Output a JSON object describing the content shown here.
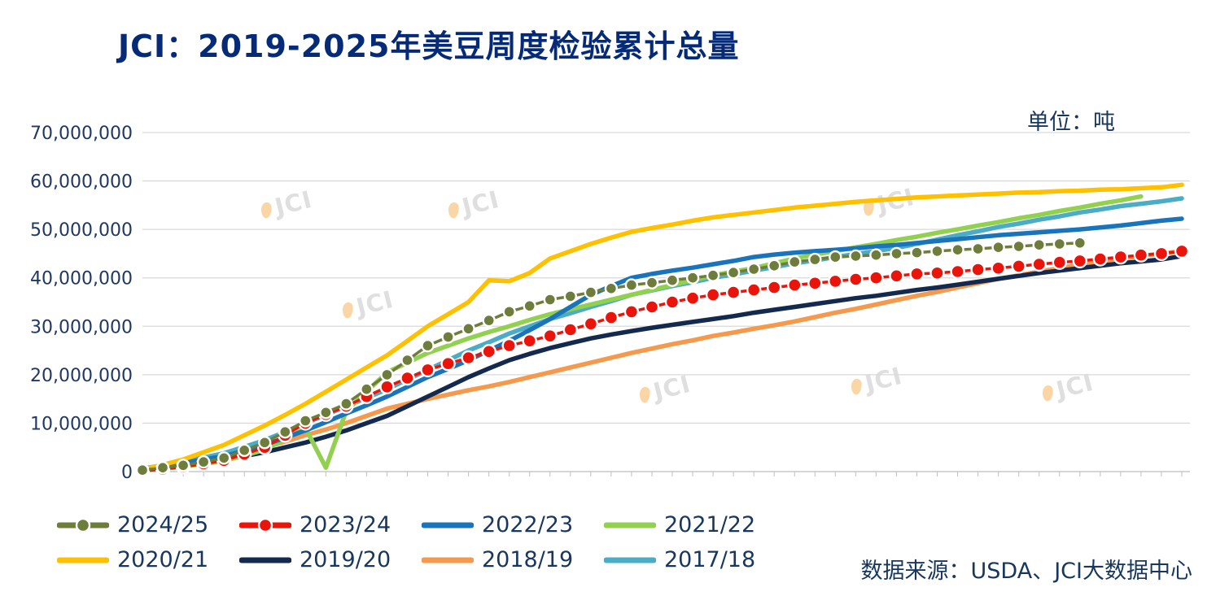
{
  "title": "JCI：2019-2025年美豆周度检验累计总量",
  "unit_label": "单位：吨",
  "source_label": "数据来源：USDA、JCI大数据中心",
  "watermark": "JCI",
  "axis": {
    "y_ticks": [
      "0",
      "10,000,000",
      "20,000,000",
      "30,000,000",
      "40,000,000",
      "50,000,000",
      "60,000,000",
      "70,000,000"
    ],
    "y_max": 70000000
  },
  "legend": {
    "items": [
      {
        "label": "2024/25",
        "color": "#6f7d3c",
        "marker": true
      },
      {
        "label": "2023/24",
        "color": "#ea140b",
        "marker": true
      },
      {
        "label": "2022/23",
        "color": "#1a74bb",
        "marker": false
      },
      {
        "label": "2021/22",
        "color": "#92d050",
        "marker": false
      },
      {
        "label": "2020/21",
        "color": "#ffc000",
        "marker": false
      },
      {
        "label": "2019/20",
        "color": "#14294e",
        "marker": false
      },
      {
        "label": "2018/19",
        "color": "#f5994d",
        "marker": false
      },
      {
        "label": "2017/18",
        "color": "#4bacc6",
        "marker": false
      }
    ]
  },
  "chart_data": {
    "type": "line",
    "title": "JCI：2019-2025年美豆周度检验累计总量",
    "xlabel": "",
    "ylabel": "吨",
    "ylim": [
      0,
      70000000
    ],
    "grid": "horizontal",
    "legend_position": "bottom",
    "value_multiplier": 1000000,
    "x": [
      1,
      2,
      3,
      4,
      5,
      6,
      7,
      8,
      9,
      10,
      11,
      12,
      13,
      14,
      15,
      16,
      17,
      18,
      19,
      20,
      21,
      22,
      23,
      24,
      25,
      26,
      27,
      28,
      29,
      30,
      31,
      32,
      33,
      34,
      35,
      36,
      37,
      38,
      39,
      40,
      41,
      42,
      43,
      44,
      45,
      46,
      47,
      48,
      49,
      50,
      51,
      52
    ],
    "series": [
      {
        "name": "2024/25",
        "color": "#6f7d3c",
        "marker": true,
        "values": [
          0.3,
          0.8,
          1.3,
          2.0,
          2.8,
          4.4,
          6.0,
          8.2,
          10.5,
          12.2,
          14.0,
          17.0,
          20.0,
          23.0,
          26.0,
          27.8,
          29.5,
          31.2,
          33.0,
          34.2,
          35.5,
          36.2,
          37.0,
          37.8,
          38.5,
          39.0,
          39.5,
          40.0,
          40.5,
          41.1,
          41.8,
          42.5,
          43.3,
          43.8,
          44.3,
          44.5,
          44.7,
          45.0,
          45.2,
          45.5,
          45.8,
          46.0,
          46.3,
          46.5,
          46.8,
          47.0,
          47.2,
          null,
          null,
          null,
          null,
          null
        ]
      },
      {
        "name": "2023/24",
        "color": "#ea140b",
        "marker": true,
        "values": [
          0.1,
          0.5,
          1.0,
          1.6,
          2.3,
          3.6,
          5.0,
          7.5,
          10.0,
          11.8,
          13.5,
          15.5,
          17.5,
          19.3,
          21.0,
          22.3,
          23.5,
          24.8,
          26.0,
          27.0,
          28.0,
          29.3,
          30.5,
          31.8,
          33.0,
          34.0,
          35.0,
          35.8,
          36.5,
          37.0,
          37.5,
          38.0,
          38.5,
          38.9,
          39.3,
          39.7,
          40.0,
          40.4,
          40.8,
          41.0,
          41.3,
          41.7,
          42.0,
          42.4,
          42.8,
          43.2,
          43.5,
          43.9,
          44.3,
          44.7,
          45.0,
          45.5
        ]
      },
      {
        "name": "2022/23",
        "color": "#1a74bb",
        "marker": false,
        "values": [
          0.5,
          1.1,
          1.8,
          2.5,
          3.2,
          4.3,
          5.5,
          7.0,
          8.5,
          10.2,
          12.0,
          13.7,
          15.5,
          17.5,
          19.5,
          21.2,
          23.0,
          25.0,
          27.0,
          29.2,
          31.5,
          34.0,
          36.5,
          38.3,
          40.0,
          40.8,
          41.5,
          42.1,
          42.8,
          43.5,
          44.3,
          44.8,
          45.2,
          45.5,
          45.8,
          46.1,
          46.5,
          46.8,
          47.2,
          47.6,
          48.0,
          48.4,
          48.8,
          49.1,
          49.4,
          49.7,
          50.0,
          50.4,
          50.8,
          51.3,
          51.8,
          52.2
        ]
      },
      {
        "name": "2021/22",
        "color": "#92d050",
        "marker": false,
        "values": [
          0.2,
          0.6,
          1.0,
          1.6,
          2.2,
          3.3,
          4.5,
          6.7,
          9.0,
          0.8,
          12.5,
          16.5,
          20.5,
          22.5,
          24.5,
          26.0,
          27.5,
          28.8,
          30.0,
          31.3,
          32.5,
          33.5,
          34.5,
          35.5,
          36.5,
          37.5,
          38.5,
          39.5,
          40.5,
          41.3,
          42.0,
          43.0,
          44.0,
          44.8,
          45.5,
          46.3,
          47.0,
          47.8,
          48.5,
          49.3,
          50.0,
          50.8,
          51.5,
          52.3,
          53.0,
          53.8,
          54.5,
          55.3,
          56.0,
          56.8,
          null,
          null
        ]
      },
      {
        "name": "2020/21",
        "color": "#ffc000",
        "marker": false,
        "values": [
          0.4,
          1.4,
          2.5,
          4.0,
          5.5,
          7.5,
          9.5,
          11.7,
          14.0,
          16.5,
          19.0,
          21.5,
          24.0,
          27.0,
          30.0,
          32.5,
          35.0,
          39.5,
          39.3,
          41.0,
          44.0,
          45.5,
          47.0,
          48.3,
          49.5,
          50.3,
          51.0,
          51.8,
          52.5,
          53.0,
          53.5,
          54.0,
          54.5,
          54.9,
          55.3,
          55.7,
          56.0,
          56.3,
          56.6,
          56.8,
          57.0,
          57.2,
          57.4,
          57.6,
          57.7,
          57.9,
          58.0,
          58.2,
          58.3,
          58.5,
          58.7,
          59.2
        ]
      },
      {
        "name": "2019/20",
        "color": "#14294e",
        "marker": false,
        "values": [
          0.3,
          0.7,
          1.2,
          1.8,
          2.5,
          3.2,
          4.0,
          5.0,
          6.0,
          7.2,
          8.5,
          10.0,
          11.5,
          13.5,
          15.5,
          17.5,
          19.5,
          21.3,
          23.0,
          24.3,
          25.5,
          26.5,
          27.5,
          28.3,
          29.0,
          29.7,
          30.3,
          30.9,
          31.5,
          32.1,
          32.8,
          33.4,
          34.0,
          34.6,
          35.2,
          35.8,
          36.3,
          36.9,
          37.5,
          38.0,
          38.6,
          39.2,
          39.8,
          40.4,
          41.0,
          41.5,
          42.0,
          42.5,
          43.0,
          43.4,
          43.8,
          44.5
        ]
      },
      {
        "name": "2018/19",
        "color": "#f5994d",
        "marker": false,
        "values": [
          0.4,
          0.9,
          1.5,
          2.2,
          3.0,
          4.0,
          5.0,
          6.2,
          7.5,
          8.7,
          10.0,
          11.5,
          13.0,
          14.0,
          15.0,
          15.9,
          16.8,
          17.6,
          18.5,
          19.5,
          20.5,
          21.5,
          22.5,
          23.5,
          24.5,
          25.4,
          26.3,
          27.1,
          28.0,
          28.7,
          29.5,
          30.2,
          31.0,
          31.9,
          32.8,
          33.6,
          34.5,
          35.4,
          36.3,
          37.1,
          38.0,
          38.9,
          39.8,
          40.5,
          41.3,
          42.0,
          42.8,
          43.4,
          44.0,
          44.5,
          45.0,
          45.5
        ]
      },
      {
        "name": "2017/18",
        "color": "#4bacc6",
        "marker": false,
        "values": [
          0.6,
          1.3,
          2.0,
          2.9,
          3.8,
          5.1,
          6.5,
          8.2,
          10.0,
          11.7,
          13.5,
          15.2,
          17.0,
          19.0,
          21.0,
          23.0,
          25.0,
          26.7,
          28.5,
          30.0,
          31.5,
          32.7,
          34.0,
          35.2,
          36.5,
          37.4,
          38.3,
          39.1,
          40.0,
          40.7,
          41.5,
          42.2,
          43.0,
          43.6,
          44.3,
          44.9,
          45.5,
          46.2,
          47.0,
          47.9,
          48.8,
          49.6,
          50.5,
          51.2,
          52.0,
          52.7,
          53.5,
          54.1,
          54.8,
          55.3,
          55.8,
          56.4
        ]
      }
    ]
  }
}
